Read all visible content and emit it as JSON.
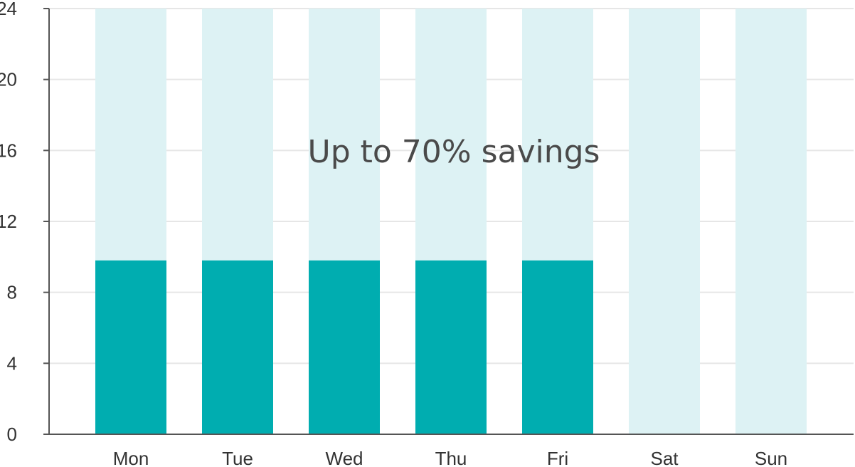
{
  "chart_data": {
    "type": "bar",
    "categories": [
      "Mon",
      "Tue",
      "Wed",
      "Thu",
      "Fri",
      "Sat",
      "Sun"
    ],
    "series": [
      {
        "values": [
          24,
          24,
          24,
          24,
          24,
          24,
          24
        ]
      },
      {
        "values": [
          9.8,
          9.8,
          9.8,
          9.8,
          9.8,
          0,
          0
        ]
      }
    ],
    "annotation": "Up to 70% savings",
    "title": "",
    "xlabel": "",
    "ylabel": "",
    "ylim": [
      0,
      24
    ],
    "yticks": [
      "0",
      "4",
      "8",
      "12",
      "16",
      "20",
      "24"
    ],
    "grid": true,
    "legend": "none",
    "colors": {
      "background_bars": "#ddf2f4",
      "foreground_bars": "#00adb0",
      "grid": "#e6e6e6",
      "axis": "#555555"
    }
  }
}
